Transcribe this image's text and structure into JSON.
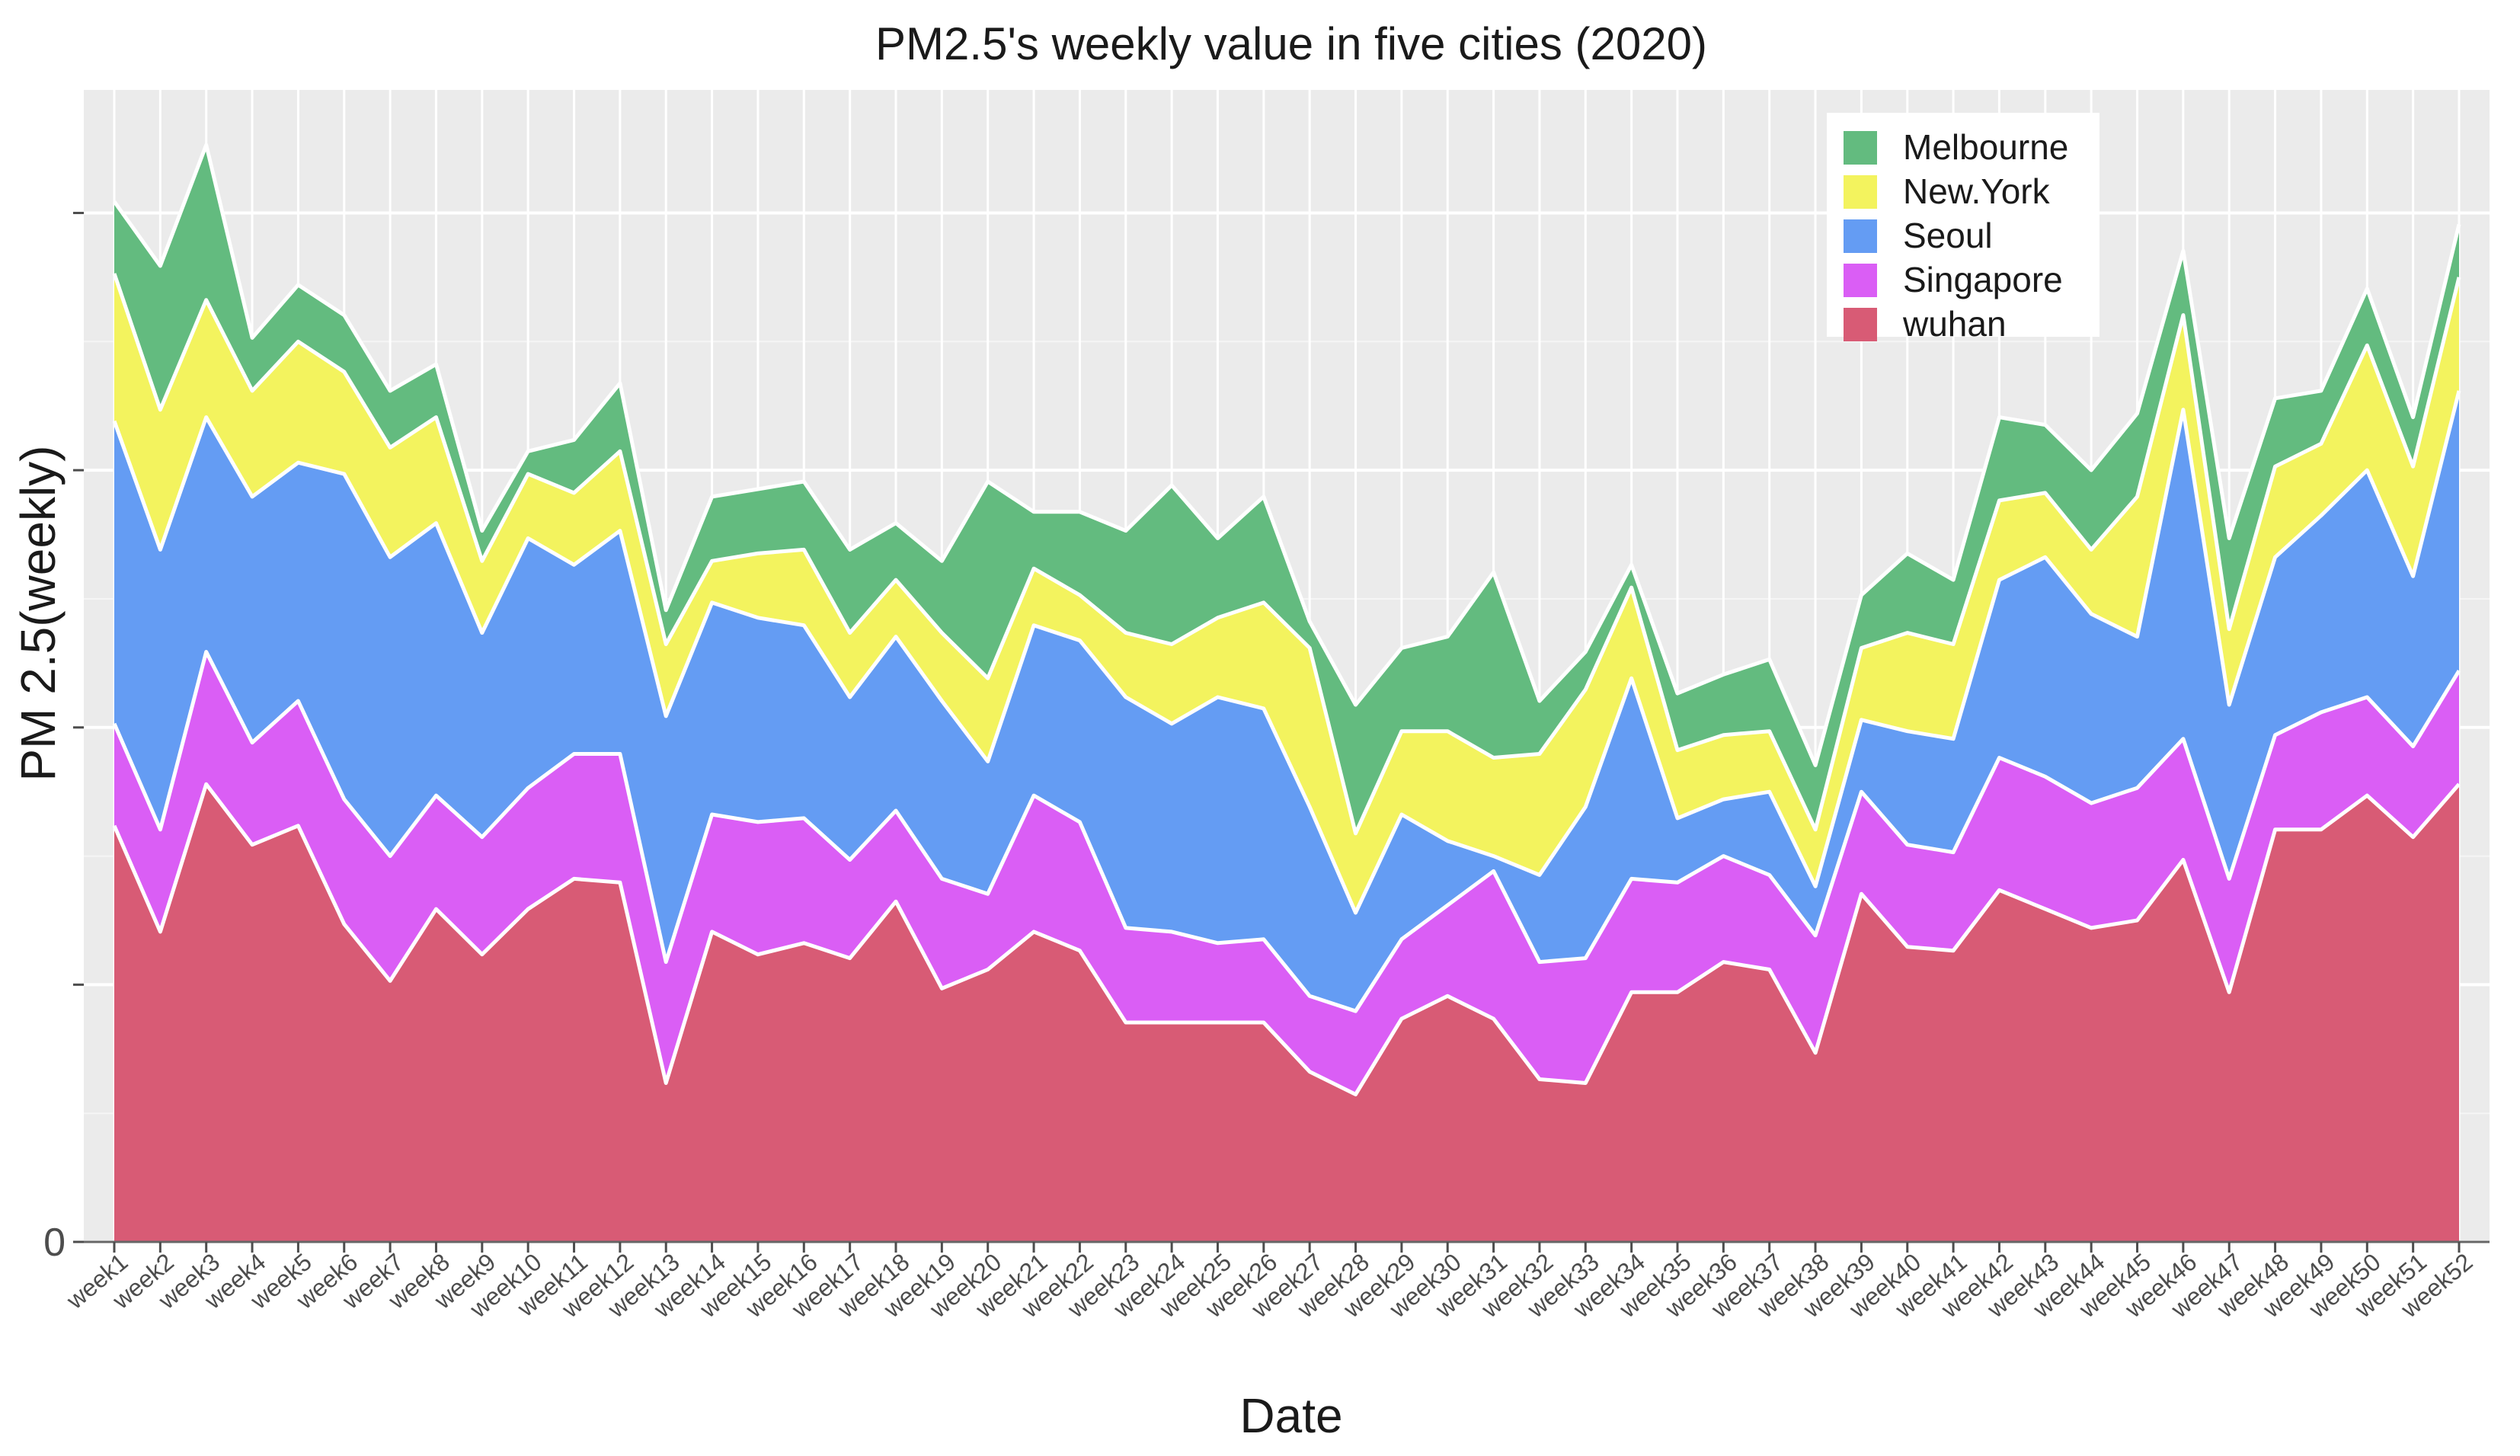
{
  "chart_data": {
    "type": "area",
    "stacked": true,
    "title": "PM2.5's weekly value in five cities (2020)",
    "xlabel": "Date",
    "ylabel": "PM 2.5(weekly)",
    "ylim": [
      0,
      145
    ],
    "y_ticks": [
      0
    ],
    "y_grid_values": [
      0,
      34,
      68,
      102,
      136
    ],
    "grid": true,
    "legend_position": "top-right",
    "categories": [
      "week1",
      "week2",
      "week3",
      "week4",
      "week5",
      "week6",
      "week7",
      "week8",
      "week9",
      "week10",
      "week11",
      "week12",
      "week13",
      "week14",
      "week15",
      "week16",
      "week17",
      "week18",
      "week19",
      "week20",
      "week21",
      "week22",
      "week23",
      "week24",
      "week25",
      "week26",
      "week27",
      "week28",
      "week29",
      "week30",
      "week31",
      "week32",
      "week33",
      "week34",
      "week35",
      "week36",
      "week37",
      "week38",
      "week39",
      "week40",
      "week41",
      "week42",
      "week43",
      "week44",
      "week45",
      "week46",
      "week47",
      "week48",
      "week49",
      "week50",
      "week51",
      "week52"
    ],
    "series": [
      {
        "name": "wuhan",
        "color": "#D6546F",
        "values": [
          55.0,
          41.0,
          60.5,
          52.5,
          55.0,
          42.0,
          34.5,
          44.0,
          38.0,
          44.0,
          48.0,
          47.5,
          21.0,
          41.0,
          38.0,
          39.5,
          37.5,
          45.0,
          33.5,
          36.0,
          41.0,
          38.5,
          29.0,
          29.0,
          29.0,
          29.0,
          22.5,
          19.5,
          29.5,
          32.5,
          29.5,
          21.5,
          21.0,
          33.0,
          33.0,
          37.0,
          36.0,
          25.0,
          46.0,
          39.0,
          38.5,
          46.5,
          44.0,
          41.5,
          42.5,
          50.5,
          33.0,
          54.5,
          54.5,
          59.0,
          53.5,
          60.5
        ]
      },
      {
        "name": "Singapore",
        "color": "#D957F5",
        "values": [
          13.5,
          13.5,
          17.5,
          13.5,
          16.5,
          16.5,
          16.5,
          15.0,
          15.5,
          16.0,
          16.5,
          17.0,
          16.0,
          15.5,
          17.5,
          16.5,
          13.0,
          12.0,
          14.5,
          10.0,
          18.0,
          17.0,
          12.5,
          12.0,
          10.5,
          11.0,
          10.0,
          11.0,
          10.5,
          12.0,
          19.5,
          15.5,
          16.5,
          15.0,
          14.5,
          14.0,
          12.5,
          15.5,
          13.5,
          13.5,
          13.0,
          17.5,
          17.5,
          16.5,
          17.5,
          16.0,
          15.0,
          12.5,
          15.5,
          13.0,
          12.0,
          15.0
        ]
      },
      {
        "name": "Seoul",
        "color": "#5E98F2",
        "values": [
          40.0,
          37.0,
          31.0,
          32.5,
          31.5,
          43.0,
          39.5,
          36.0,
          27.0,
          33.0,
          25.0,
          29.5,
          32.5,
          28.0,
          27.0,
          25.5,
          21.5,
          23.0,
          23.5,
          17.5,
          22.5,
          24.0,
          30.5,
          27.5,
          32.5,
          30.5,
          25.0,
          13.0,
          16.5,
          8.5,
          2.0,
          11.5,
          20.0,
          26.5,
          8.5,
          7.5,
          11.0,
          6.5,
          9.5,
          15.0,
          15.0,
          23.5,
          29.0,
          25.0,
          20.0,
          43.5,
          23.0,
          23.5,
          26.0,
          30.0,
          22.5,
          37.0
        ]
      },
      {
        "name": "New.York",
        "color": "#F2F257",
        "values": [
          19.5,
          18.5,
          15.5,
          14.0,
          16.0,
          13.5,
          14.5,
          14.0,
          9.5,
          8.5,
          9.5,
          10.5,
          9.5,
          5.5,
          8.5,
          10.0,
          8.5,
          7.5,
          9.0,
          11.0,
          7.5,
          6.0,
          8.5,
          10.5,
          10.5,
          14.0,
          21.0,
          10.5,
          11.0,
          14.5,
          13.0,
          16.0,
          15.5,
          12.0,
          9.0,
          8.5,
          8.0,
          7.5,
          9.5,
          13.0,
          12.5,
          10.5,
          8.5,
          8.5,
          18.5,
          12.5,
          10.0,
          12.0,
          9.5,
          16.5,
          14.5,
          15.0
        ]
      },
      {
        "name": "Melbourne",
        "color": "#5DB87A",
        "values": [
          9.5,
          19.0,
          20.5,
          7.0,
          7.5,
          7.5,
          7.5,
          7.0,
          4.0,
          3.0,
          7.0,
          9.0,
          4.5,
          8.5,
          8.5,
          9.0,
          11.0,
          7.5,
          9.5,
          26.0,
          7.5,
          11.0,
          13.5,
          21.0,
          10.5,
          14.0,
          3.5,
          17.0,
          11.0,
          12.5,
          24.5,
          7.0,
          5.0,
          3.0,
          7.5,
          8.0,
          9.5,
          8.5,
          7.0,
          10.5,
          8.5,
          11.0,
          9.0,
          10.5,
          11.0,
          8.5,
          12.0,
          9.0,
          7.0,
          7.5,
          6.5,
          7.0
        ]
      }
    ],
    "legend": [
      "Melbourne",
      "New.York",
      "Seoul",
      "Singapore",
      "wuhan"
    ]
  }
}
